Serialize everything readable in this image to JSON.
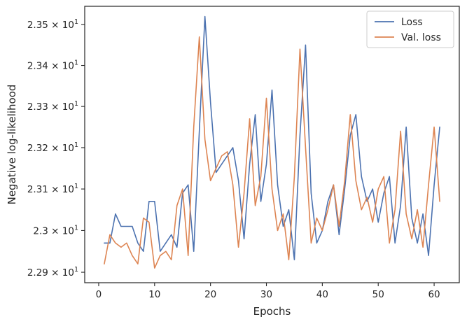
{
  "chart_data": {
    "type": "line",
    "title": "",
    "xlabel": "Epochs",
    "ylabel": "Negative log-likelihood",
    "xlim": [
      -2.5,
      64.5
    ],
    "ylim": [
      2.2875,
      2.3545
    ],
    "yscale": "log",
    "grid": false,
    "legend_position": "top-right",
    "x_ticks": [
      0,
      10,
      20,
      30,
      40,
      50,
      60
    ],
    "x_tick_labels": [
      "0",
      "10",
      "20",
      "30",
      "40",
      "50",
      "60"
    ],
    "y_ticks": [
      2.29,
      2.3,
      2.31,
      2.32,
      2.33,
      2.34,
      2.35
    ],
    "y_tick_labels": [
      {
        "mantissa": "2.29",
        "base": "10",
        "exp": "1"
      },
      {
        "mantissa": "2.3",
        "base": "10",
        "exp": "1"
      },
      {
        "mantissa": "2.31",
        "base": "10",
        "exp": "1"
      },
      {
        "mantissa": "2.32",
        "base": "10",
        "exp": "1"
      },
      {
        "mantissa": "2.33",
        "base": "10",
        "exp": "1"
      },
      {
        "mantissa": "2.34",
        "base": "10",
        "exp": "1"
      },
      {
        "mantissa": "2.35",
        "base": "10",
        "exp": "1"
      }
    ],
    "x": [
      1,
      2,
      3,
      4,
      5,
      6,
      7,
      8,
      9,
      10,
      11,
      12,
      13,
      14,
      15,
      16,
      17,
      18,
      19,
      20,
      21,
      22,
      23,
      24,
      25,
      26,
      27,
      28,
      29,
      30,
      31,
      32,
      33,
      34,
      35,
      36,
      37,
      38,
      39,
      40,
      41,
      42,
      43,
      44,
      45,
      46,
      47,
      48,
      49,
      50,
      51,
      52,
      53,
      54,
      55,
      56,
      57,
      58,
      59,
      60,
      61
    ],
    "series": [
      {
        "name": "Loss",
        "color": "#4c72b0",
        "values": [
          22.97,
          22.97,
          23.04,
          23.01,
          23.01,
          23.01,
          22.97,
          22.95,
          23.07,
          23.07,
          22.95,
          22.97,
          22.99,
          22.96,
          23.09,
          23.11,
          22.95,
          23.24,
          23.52,
          23.31,
          23.14,
          23.16,
          23.18,
          23.2,
          23.12,
          22.98,
          23.16,
          23.28,
          23.07,
          23.16,
          23.34,
          23.11,
          23.01,
          23.05,
          22.93,
          23.23,
          23.45,
          23.09,
          22.97,
          23.0,
          23.07,
          23.11,
          22.99,
          23.1,
          23.23,
          23.28,
          23.13,
          23.07,
          23.1,
          23.02,
          23.09,
          23.13,
          22.97,
          23.06,
          23.25,
          23.03,
          22.97,
          23.04,
          22.94,
          23.11,
          23.25
        ]
      },
      {
        "name": "Val. loss",
        "color": "#dd8452",
        "values": [
          22.92,
          22.99,
          22.97,
          22.96,
          22.97,
          22.94,
          22.92,
          23.03,
          23.02,
          22.91,
          22.94,
          22.95,
          22.93,
          23.06,
          23.1,
          22.94,
          23.25,
          23.47,
          23.22,
          23.12,
          23.15,
          23.18,
          23.19,
          23.11,
          22.96,
          23.09,
          23.27,
          23.06,
          23.13,
          23.32,
          23.1,
          23.0,
          23.04,
          22.93,
          23.13,
          23.44,
          23.2,
          22.97,
          23.03,
          23.0,
          23.05,
          23.11,
          23.01,
          23.12,
          23.28,
          23.12,
          23.05,
          23.08,
          23.02,
          23.1,
          23.13,
          22.97,
          23.05,
          23.24,
          23.04,
          22.98,
          23.05,
          22.96,
          23.11,
          23.25,
          23.07
        ]
      }
    ]
  }
}
